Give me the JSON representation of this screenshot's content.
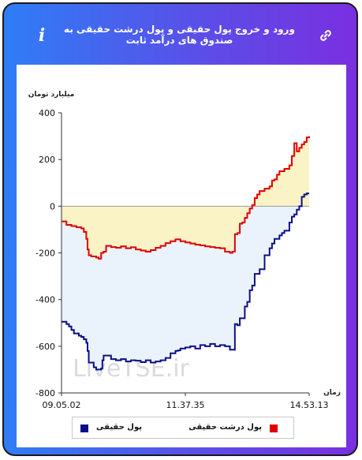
{
  "header": {
    "title": "ورود و خروج پول حقیقی و پول درشت حقیقی به صندوق های درآمد ثابت",
    "info_icon": "info-icon",
    "link_icon": "link-icon"
  },
  "watermark": "LiveTSE.ir",
  "colors": {
    "accent_start": "#2f7df6",
    "accent_end": "#7a2fe0",
    "real_money": "#0b0f86",
    "big_real_money": "#e00000",
    "negative_fill": "#eaf3fb",
    "positive_fill": "#faf3c6"
  },
  "chart_data": {
    "type": "line",
    "ylabel": "میلیارد تومان",
    "xlabel": "زمان",
    "ylim": [
      -800,
      400
    ],
    "yticks": [
      "400",
      "200",
      "0",
      "-200",
      "-400",
      "-600",
      "-800"
    ],
    "xtick_labels": [
      "09.05.02",
      "11.37.35",
      "14.53.13"
    ],
    "xlim": [
      0,
      100
    ],
    "grid": false,
    "legend_position": "bottom",
    "series": [
      {
        "name": "پول حقیقی",
        "color": "#0b0f86",
        "x": [
          0,
          2,
          3,
          4,
          5,
          7,
          8,
          9,
          10,
          10.5,
          11,
          13,
          14,
          16,
          16.5,
          17,
          18,
          20,
          22,
          24,
          26,
          28,
          30,
          32,
          34,
          36,
          38,
          40,
          42,
          44,
          46,
          47,
          48,
          50,
          52,
          54,
          56,
          58,
          60,
          62,
          64,
          66,
          67,
          68,
          69,
          70,
          71,
          72,
          73,
          74,
          75,
          76,
          77,
          78,
          80,
          82,
          84,
          85,
          86,
          87,
          88,
          89,
          90,
          91,
          92,
          93,
          94,
          95,
          96,
          97,
          98,
          99,
          100
        ],
        "y": [
          -495,
          -505,
          -515,
          -530,
          -545,
          -555,
          -560,
          -570,
          -585,
          -620,
          -670,
          -690,
          -700,
          -695,
          -660,
          -640,
          -640,
          -655,
          -660,
          -655,
          -665,
          -660,
          -662,
          -668,
          -660,
          -670,
          -665,
          -660,
          -650,
          -630,
          -620,
          -618,
          -610,
          -605,
          -600,
          -610,
          -595,
          -600,
          -590,
          -600,
          -595,
          -600,
          -600,
          -615,
          -615,
          -505,
          -510,
          -480,
          -480,
          -430,
          -410,
          -360,
          -340,
          -290,
          -270,
          -210,
          -180,
          -160,
          -140,
          -140,
          -125,
          -115,
          -105,
          -105,
          -70,
          -45,
          -35,
          -15,
          0,
          40,
          50,
          55,
          55
        ]
      },
      {
        "name": "پول درشت حقیقی",
        "color": "#e00000",
        "x": [
          0,
          2,
          4,
          6,
          8,
          9,
          10,
          10.5,
          11,
          12,
          14,
          15,
          16,
          17,
          18,
          20,
          22,
          24,
          26,
          28,
          30,
          32,
          34,
          36,
          38,
          40,
          42,
          44,
          46,
          48,
          50,
          52,
          54,
          56,
          58,
          60,
          62,
          64,
          66,
          67,
          68,
          69,
          70,
          71,
          72,
          73,
          74,
          75,
          76,
          77,
          78,
          79,
          80,
          82,
          84,
          85,
          86,
          87,
          88,
          90,
          92,
          93,
          94,
          95,
          96,
          97,
          98,
          99,
          100
        ],
        "y": [
          -65,
          -80,
          -85,
          -90,
          -95,
          -110,
          -140,
          -185,
          -210,
          -215,
          -220,
          -225,
          -200,
          -195,
          -170,
          -175,
          -178,
          -172,
          -180,
          -176,
          -185,
          -190,
          -195,
          -188,
          -178,
          -170,
          -158,
          -150,
          -142,
          -150,
          -155,
          -160,
          -165,
          -168,
          -172,
          -175,
          -178,
          -180,
          -195,
          -195,
          -200,
          -195,
          -120,
          -115,
          -75,
          -70,
          -50,
          -30,
          -10,
          5,
          35,
          50,
          65,
          75,
          85,
          110,
          115,
          135,
          150,
          160,
          175,
          215,
          270,
          235,
          250,
          265,
          275,
          295,
          300
        ]
      }
    ]
  }
}
